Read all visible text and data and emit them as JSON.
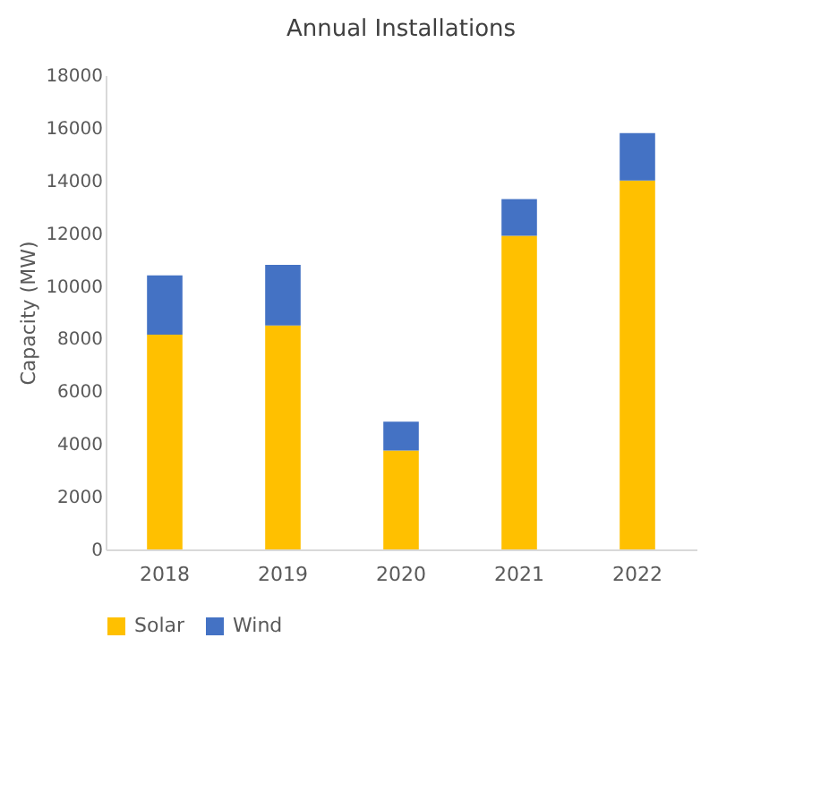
{
  "chart_data": {
    "type": "bar",
    "title": "Annual Installations",
    "ylabel": "Capacity (MW)",
    "stacked": true,
    "categories": [
      "2018",
      "2019",
      "2020",
      "2021",
      "2022"
    ],
    "series": [
      {
        "name": "Solar",
        "color": "#ffc000",
        "values": [
          8150,
          8500,
          3750,
          11900,
          14000
        ]
      },
      {
        "name": "Wind",
        "color": "#4472c4",
        "values": [
          2250,
          2300,
          1100,
          1400,
          1800
        ]
      }
    ],
    "ylim": [
      0,
      18000
    ],
    "yticks": [
      0,
      2000,
      4000,
      6000,
      8000,
      10000,
      12000,
      14000,
      16000,
      18000
    ],
    "grid": false,
    "legend": "bottom"
  }
}
